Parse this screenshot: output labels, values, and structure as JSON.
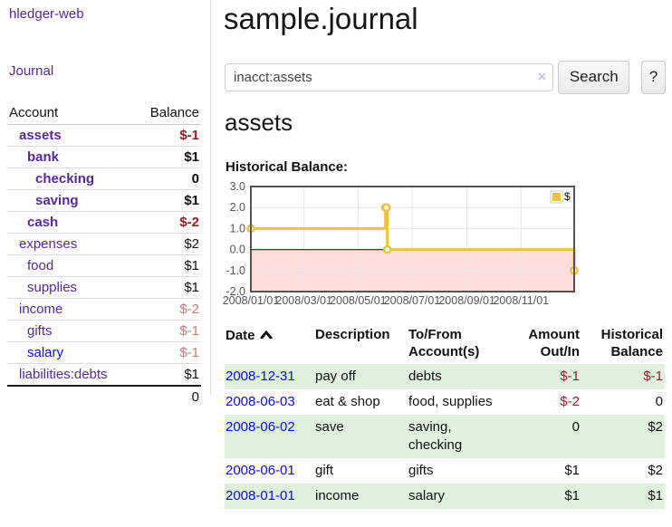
{
  "colors": {
    "link_purple": "#552a94",
    "link_blue": "#0b0bee",
    "negative_strong": "#8d1f28",
    "negative_soft": "#c17a7a",
    "row_stripe_green": "#dff0df",
    "chart_series_gold": "#edc240",
    "chart_negative_fill": "#ffdddd",
    "chart_zero_line": "#990000",
    "chart_border": "#545454",
    "chart_grid": "#e6e6e6",
    "chart_tick_text": "#545454"
  },
  "sidebar": {
    "brand": "hledger-web",
    "nav_journal": "Journal",
    "accounts": {
      "col_account": "Account",
      "col_balance": "Balance",
      "rows": [
        {
          "name": "assets",
          "indent": 1,
          "emphasis": true,
          "visited": true,
          "balance": "$-1",
          "tone": "neg-strong"
        },
        {
          "name": "bank",
          "indent": 2,
          "emphasis": true,
          "visited": true,
          "balance": "$1",
          "tone": "normal"
        },
        {
          "name": "checking",
          "indent": 3,
          "emphasis": true,
          "visited": true,
          "balance": "0",
          "tone": "normal"
        },
        {
          "name": "saving",
          "indent": 3,
          "emphasis": true,
          "visited": true,
          "balance": "$1",
          "tone": "normal"
        },
        {
          "name": "cash",
          "indent": 2,
          "emphasis": true,
          "visited": true,
          "balance": "$-2",
          "tone": "neg-strong"
        },
        {
          "name": "expenses",
          "indent": 1,
          "emphasis": false,
          "visited": true,
          "balance": "$2",
          "tone": "normal"
        },
        {
          "name": "food",
          "indent": 2,
          "emphasis": false,
          "visited": true,
          "balance": "$1",
          "tone": "normal"
        },
        {
          "name": "supplies",
          "indent": 2,
          "emphasis": false,
          "visited": true,
          "balance": "$1",
          "tone": "normal"
        },
        {
          "name": "income",
          "indent": 1,
          "emphasis": false,
          "visited": true,
          "balance": "$-2",
          "tone": "neg-soft"
        },
        {
          "name": "gifts",
          "indent": 2,
          "emphasis": false,
          "visited": true,
          "balance": "$-1",
          "tone": "neg-soft"
        },
        {
          "name": "salary",
          "indent": 2,
          "emphasis": false,
          "visited": false,
          "balance": "$-1",
          "tone": "neg-soft"
        },
        {
          "name": "liabilities:debts",
          "indent": 1,
          "emphasis": false,
          "visited": true,
          "balance": "$1",
          "tone": "normal"
        }
      ],
      "total": "0"
    }
  },
  "main": {
    "title": "sample.journal",
    "search": {
      "value": "inacct:assets",
      "clear": "×",
      "button": "Search",
      "help": "?"
    },
    "account_heading": "assets",
    "chart_title": "Historical Balance:"
  },
  "chart_data": {
    "type": "line",
    "step": true,
    "title": "Historical Balance",
    "series": [
      {
        "name": "$",
        "points": [
          [
            "2008-01-01",
            1
          ],
          [
            "2008-06-01",
            2
          ],
          [
            "2008-06-02",
            2
          ],
          [
            "2008-06-03",
            0
          ],
          [
            "2008-12-31",
            -1
          ]
        ]
      }
    ],
    "x_range": [
      "2008-01-01",
      "2008-12-31"
    ],
    "y_range": [
      -2,
      3
    ],
    "y_ticks": [
      "3.0",
      "2.0",
      "1.0",
      "0.0",
      "-1.0",
      "-2.0"
    ],
    "x_ticks": [
      {
        "label": "2008/01/01",
        "date": "2008-01-01"
      },
      {
        "label": "2008/03/01",
        "date": "2008-03-01"
      },
      {
        "label": "2008/05/01",
        "date": "2008-05-01"
      },
      {
        "label": "2008/07/01",
        "date": "2008-07-01"
      },
      {
        "label": "2008/09/01",
        "date": "2008-09-01"
      },
      {
        "label": "2008/11/01",
        "date": "2008-11-01"
      }
    ],
    "legend": {
      "label": "$",
      "position": "top-right"
    },
    "negative_region_shaded": true,
    "grid": true
  },
  "transactions": {
    "headers": {
      "date": "Date",
      "description": "Description",
      "accounts": "To/From Account(s)",
      "amount": "Amount Out/In",
      "balance": "Historical Balance"
    },
    "rows": [
      {
        "date": "2008-12-31",
        "description": "pay off",
        "accounts": "debts",
        "amount": "$-1",
        "amount_tone": "neg-strong",
        "balance": "$-1",
        "balance_tone": "neg-strong"
      },
      {
        "date": "2008-06-03",
        "description": "eat & shop",
        "accounts": "food, supplies",
        "amount": "$-2",
        "amount_tone": "neg-strong",
        "balance": "0",
        "balance_tone": "normal"
      },
      {
        "date": "2008-06-02",
        "description": "save",
        "accounts": "saving, checking",
        "amount": "0",
        "amount_tone": "normal",
        "balance": "$2",
        "balance_tone": "normal"
      },
      {
        "date": "2008-06-01",
        "description": "gift",
        "accounts": "gifts",
        "amount": "$1",
        "amount_tone": "normal",
        "balance": "$2",
        "balance_tone": "normal"
      },
      {
        "date": "2008-01-01",
        "description": "income",
        "accounts": "salary",
        "amount": "$1",
        "amount_tone": "normal",
        "balance": "$1",
        "balance_tone": "normal"
      }
    ]
  }
}
